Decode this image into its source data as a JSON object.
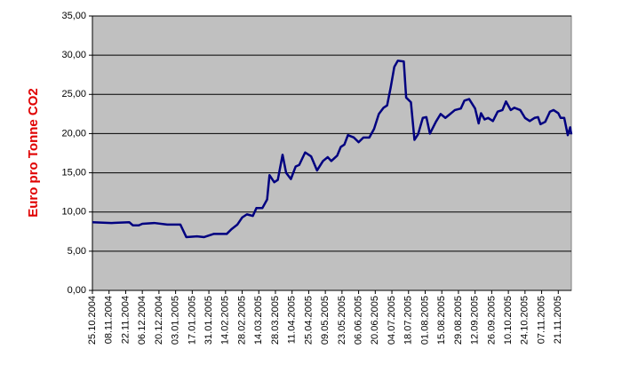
{
  "chart_data": {
    "type": "line",
    "y_label": "Euro pro Tonne CO2",
    "xlim": [
      "25.10.2004",
      "02.12.2005"
    ],
    "xticks": [
      "25.10.2004",
      "08.11.2004",
      "22.11.2004",
      "06.12.2004",
      "20.12.2004",
      "03.01.2005",
      "17.01.2005",
      "31.01.2005",
      "14.02.2005",
      "28.02.2005",
      "14.03.2005",
      "28.03.2005",
      "11.04.2005",
      "25.04.2005",
      "09.05.2005",
      "23.05.2005",
      "06.06.2005",
      "20.06.2005",
      "04.07.2005",
      "18.07.2005",
      "01.08.2005",
      "15.08.2005",
      "29.08.2005",
      "12.09.2005",
      "26.09.2005",
      "10.10.2005",
      "24.10.2005",
      "07.11.2005",
      "21.11.2005"
    ],
    "ylim": [
      0,
      35
    ],
    "yticks": [
      {
        "value": 0,
        "label": "0,00"
      },
      {
        "value": 5,
        "label": "5,00"
      },
      {
        "value": 10,
        "label": "10,00"
      },
      {
        "value": 15,
        "label": "15,00"
      },
      {
        "value": 20,
        "label": "20,00"
      },
      {
        "value": 25,
        "label": "25,00"
      },
      {
        "value": 30,
        "label": "30,00"
      },
      {
        "value": 35,
        "label": "35,00"
      }
    ],
    "grid": true,
    "color": "#000080",
    "x": [
      "25.10.2004",
      "10.11.2004",
      "25.11.2004",
      "28.11.2004",
      "03.12.2004",
      "06.12.2004",
      "16.12.2004",
      "27.12.2004",
      "07.01.2005",
      "12.01.2005",
      "21.01.2005",
      "27.01.2005",
      "04.02.2005",
      "15.02.2005",
      "19.02.2005",
      "24.02.2005",
      "28.02.2005",
      "04.03.2005",
      "09.03.2005",
      "12.03.2005",
      "17.03.2005",
      "21.03.2005",
      "23.03.2005",
      "27.03.2005",
      "30.03.2005",
      "03.04.2005",
      "06.04.2005",
      "10.04.2005",
      "14.04.2005",
      "17.04.2005",
      "22.04.2005",
      "27.04.2005",
      "02.05.2005",
      "07.05.2005",
      "11.05.2005",
      "14.05.2005",
      "19.05.2005",
      "22.05.2005",
      "25.05.2005",
      "28.05.2005",
      "02.06.2005",
      "06.06.2005",
      "10.06.2005",
      "15.06.2005",
      "19.06.2005",
      "23.06.2005",
      "27.06.2005",
      "30.06.2005",
      "03.07.2005",
      "06.07.2005",
      "09.07.2005",
      "14.07.2005",
      "16.07.2005",
      "20.07.2005",
      "23.07.2005",
      "26.07.2005",
      "30.07.2005",
      "02.08.2005",
      "05.08.2005",
      "10.08.2005",
      "14.08.2005",
      "18.08.2005",
      "22.08.2005",
      "26.08.2005",
      "31.08.2005",
      "03.09.2005",
      "07.09.2005",
      "12.09.2005",
      "15.09.2005",
      "17.09.2005",
      "20.09.2005",
      "23.09.2005",
      "27.09.2005",
      "01.10.2005",
      "05.10.2005",
      "08.10.2005",
      "12.10.2005",
      "15.10.2005",
      "20.10.2005",
      "24.10.2005",
      "28.10.2005",
      "01.11.2005",
      "04.11.2005",
      "06.11.2005",
      "10.11.2005",
      "14.11.2005",
      "17.11.2005",
      "21.11.2005",
      "23.11.2005",
      "26.11.2005",
      "29.11.2005",
      "01.12.2005",
      "02.12.2005"
    ],
    "values": [
      8.7,
      8.6,
      8.7,
      8.3,
      8.3,
      8.5,
      8.6,
      8.4,
      8.4,
      6.8,
      6.9,
      6.8,
      7.2,
      7.2,
      7.8,
      8.4,
      9.3,
      9.7,
      9.5,
      10.5,
      10.5,
      11.6,
      14.7,
      13.8,
      14.1,
      17.3,
      15.0,
      14.2,
      15.8,
      16.0,
      17.6,
      17.1,
      15.3,
      16.5,
      17.0,
      16.5,
      17.2,
      18.3,
      18.6,
      19.8,
      19.5,
      18.9,
      19.5,
      19.5,
      20.6,
      22.5,
      23.3,
      23.6,
      25.9,
      28.5,
      29.3,
      29.2,
      24.6,
      24.0,
      19.2,
      19.9,
      22.0,
      22.1,
      20.0,
      21.5,
      22.5,
      22.0,
      22.5,
      23.0,
      23.2,
      24.2,
      24.4,
      23.2,
      21.3,
      22.6,
      21.8,
      22.0,
      21.6,
      22.8,
      23.0,
      24.1,
      23.0,
      23.3,
      23.0,
      22.0,
      21.6,
      22.0,
      22.1,
      21.2,
      21.5,
      22.8,
      23.0,
      22.6,
      22.0,
      22.0,
      19.8,
      20.8,
      19.9
    ]
  }
}
